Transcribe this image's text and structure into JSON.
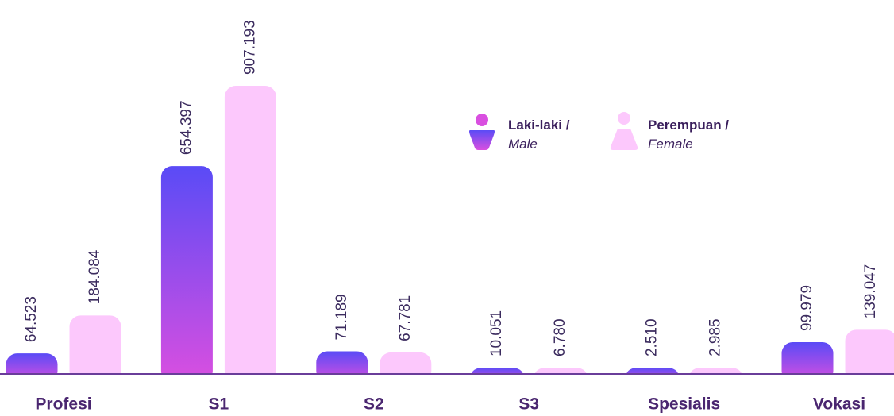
{
  "chart_data": {
    "type": "bar",
    "categories": [
      "Profesi",
      "S1",
      "S2",
      "S3",
      "Spesialis",
      "Vokasi"
    ],
    "series": [
      {
        "name": "Laki-laki /",
        "name_en": "Male",
        "gradient": [
          "#5a4bf6",
          "#d94fe0"
        ],
        "values": [
          64523,
          654397,
          71189,
          10051,
          2510,
          99979
        ],
        "value_labels": [
          "64.523",
          "654.397",
          "71.189",
          "10.051",
          "2.510",
          "99.979"
        ]
      },
      {
        "name": "Perempuan /",
        "name_en": "Female",
        "gradient": [
          "#fcc8fc",
          "#fcc8fc"
        ],
        "values": [
          184084,
          907193,
          67781,
          6780,
          2985,
          139047
        ],
        "value_labels": [
          "184.084",
          "907.193",
          "67.781",
          "6.780",
          "2.985",
          "139.047"
        ]
      }
    ]
  }
}
